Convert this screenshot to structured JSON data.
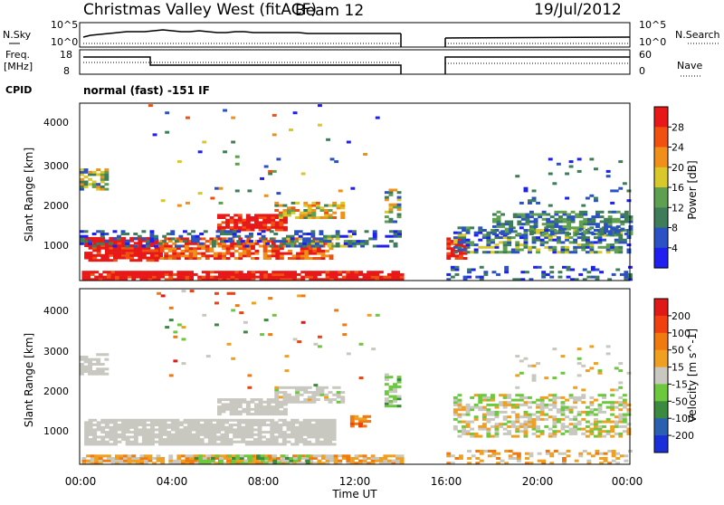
{
  "header": {
    "title": "Christmas Valley West (fitACF)",
    "beam": "Beam 12",
    "date": "19/Jul/2012"
  },
  "params": {
    "nsky_label": "N.Sky",
    "nsky_ticks": [
      "10^5",
      "10^0"
    ],
    "nsearch_label": "N.Search",
    "nsearch_ticks": [
      "10^5",
      "10^0"
    ],
    "freq_label": "Freq.",
    "freq_unit": "[MHz]",
    "freq_ticks": [
      "18",
      "8"
    ],
    "nave_label": "Nave",
    "nave_ticks": [
      "60",
      "0"
    ],
    "cpid_label": "CPID",
    "cpid_value": "normal (fast) -151 IF"
  },
  "chart_data": [
    {
      "type": "heatmap",
      "name": "power",
      "ylabel": "Slant Range [km]",
      "yticks": [
        "4000",
        "3000",
        "2000",
        "1000"
      ],
      "ylim": [
        180,
        4500
      ],
      "colorbar_label": "Power [dB]",
      "colorbar_ticks": [
        "28",
        "24",
        "20",
        "16",
        "12",
        "8",
        "4"
      ],
      "colors": [
        "#1f1ff0",
        "#2a52c4",
        "#3f7d5a",
        "#5fa050",
        "#d8c82a",
        "#f0901a",
        "#f05010",
        "#e81818"
      ],
      "data_gap_ut_hours": [
        14.0,
        16.0
      ]
    },
    {
      "type": "heatmap",
      "name": "velocity",
      "ylabel": "Slant Range [km]",
      "yticks": [
        "4000",
        "3000",
        "2000",
        "1000"
      ],
      "ylim": [
        180,
        4500
      ],
      "colorbar_label": "Velocity [m s^-1]",
      "colorbar_ticks": [
        "200",
        "100",
        "50",
        "15",
        "-15",
        "-50",
        "-100",
        "-200"
      ],
      "colors": [
        "#1a2fd8",
        "#2b5fb0",
        "#3c8a40",
        "#6cc83c",
        "#c8c8c0",
        "#f0a020",
        "#f07a10",
        "#f04010",
        "#e01818"
      ],
      "data_gap_ut_hours": [
        14.0,
        16.0
      ]
    }
  ],
  "xaxis": {
    "label": "Time UT",
    "ticks": [
      "00:00",
      "04:00",
      "08:00",
      "12:00",
      "16:00",
      "20:00",
      "00:00"
    ]
  }
}
